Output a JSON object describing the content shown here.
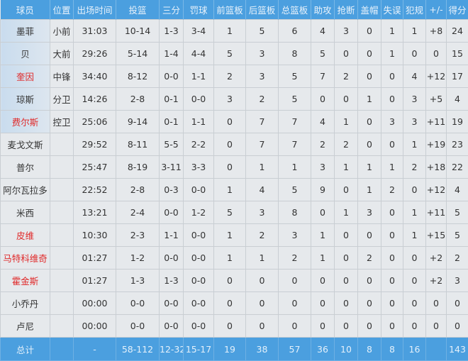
{
  "headers": [
    "球员",
    "位置",
    "出场时间",
    "投篮",
    "三分",
    "罚球",
    "前篮板",
    "后篮板",
    "总篮板",
    "助攻",
    "抢断",
    "盖帽",
    "失误",
    "犯规",
    "+/-",
    "得分"
  ],
  "highlight_color": "#e02a2a",
  "header_color": "#4b9fdf",
  "players": [
    {
      "name": "墨菲",
      "red": false,
      "starter": true,
      "stats": [
        "小前",
        "31:03",
        "10-14",
        "1-3",
        "3-4",
        "1",
        "5",
        "6",
        "4",
        "3",
        "0",
        "1",
        "1",
        "+8",
        "24"
      ]
    },
    {
      "name": "贝",
      "red": false,
      "starter": true,
      "stats": [
        "大前",
        "29:26",
        "5-14",
        "1-4",
        "4-4",
        "5",
        "3",
        "8",
        "5",
        "0",
        "0",
        "1",
        "0",
        "0",
        "15"
      ]
    },
    {
      "name": "奎因",
      "red": true,
      "starter": true,
      "stats": [
        "中锋",
        "34:40",
        "8-12",
        "0-0",
        "1-1",
        "2",
        "3",
        "5",
        "7",
        "2",
        "0",
        "0",
        "4",
        "+12",
        "17"
      ]
    },
    {
      "name": "琼斯",
      "red": false,
      "starter": true,
      "stats": [
        "分卫",
        "14:26",
        "2-8",
        "0-1",
        "0-0",
        "3",
        "2",
        "5",
        "0",
        "0",
        "1",
        "0",
        "3",
        "+5",
        "4"
      ]
    },
    {
      "name": "费尔斯",
      "red": true,
      "starter": true,
      "stats": [
        "控卫",
        "25:06",
        "9-14",
        "0-1",
        "1-1",
        "0",
        "7",
        "7",
        "4",
        "1",
        "0",
        "3",
        "3",
        "+11",
        "19"
      ]
    },
    {
      "name": "麦戈文斯",
      "red": false,
      "starter": false,
      "stats": [
        "",
        "29:52",
        "8-11",
        "5-5",
        "2-2",
        "0",
        "7",
        "7",
        "2",
        "2",
        "0",
        "0",
        "1",
        "+19",
        "23"
      ]
    },
    {
      "name": "普尔",
      "red": false,
      "starter": false,
      "stats": [
        "",
        "25:47",
        "8-19",
        "3-11",
        "3-3",
        "0",
        "1",
        "1",
        "3",
        "1",
        "1",
        "1",
        "2",
        "+18",
        "22"
      ]
    },
    {
      "name": "阿尔瓦拉多",
      "red": false,
      "starter": false,
      "stats": [
        "",
        "22:52",
        "2-8",
        "0-3",
        "0-0",
        "1",
        "4",
        "5",
        "9",
        "0",
        "1",
        "2",
        "0",
        "+12",
        "4"
      ]
    },
    {
      "name": "米西",
      "red": false,
      "starter": false,
      "stats": [
        "",
        "13:21",
        "2-4",
        "0-0",
        "1-2",
        "5",
        "3",
        "8",
        "0",
        "1",
        "3",
        "0",
        "1",
        "+11",
        "5"
      ]
    },
    {
      "name": "皮维",
      "red": true,
      "starter": false,
      "stats": [
        "",
        "10:30",
        "2-3",
        "1-1",
        "0-0",
        "1",
        "2",
        "3",
        "1",
        "0",
        "0",
        "0",
        "1",
        "+15",
        "5"
      ]
    },
    {
      "name": "马特科维奇",
      "red": true,
      "starter": false,
      "stats": [
        "",
        "01:27",
        "1-2",
        "0-0",
        "0-0",
        "1",
        "1",
        "2",
        "1",
        "0",
        "2",
        "0",
        "0",
        "+2",
        "2"
      ]
    },
    {
      "name": "霍金斯",
      "red": true,
      "starter": false,
      "stats": [
        "",
        "01:27",
        "1-3",
        "1-3",
        "0-0",
        "0",
        "0",
        "0",
        "0",
        "0",
        "0",
        "0",
        "0",
        "+2",
        "3"
      ]
    },
    {
      "name": "小乔丹",
      "red": false,
      "starter": false,
      "stats": [
        "",
        "00:00",
        "0-0",
        "0-0",
        "0-0",
        "0",
        "0",
        "0",
        "0",
        "0",
        "0",
        "0",
        "0",
        "0",
        "0"
      ]
    },
    {
      "name": "卢尼",
      "red": false,
      "starter": false,
      "stats": [
        "",
        "00:00",
        "0-0",
        "0-0",
        "0-0",
        "0",
        "0",
        "0",
        "0",
        "0",
        "0",
        "0",
        "0",
        "0",
        "0"
      ]
    }
  ],
  "total": {
    "label": "总计",
    "stats": [
      "",
      "-",
      "58-112",
      "12-32",
      "15-17",
      "19",
      "38",
      "57",
      "36",
      "10",
      "8",
      "8",
      "16",
      "",
      "143"
    ]
  }
}
